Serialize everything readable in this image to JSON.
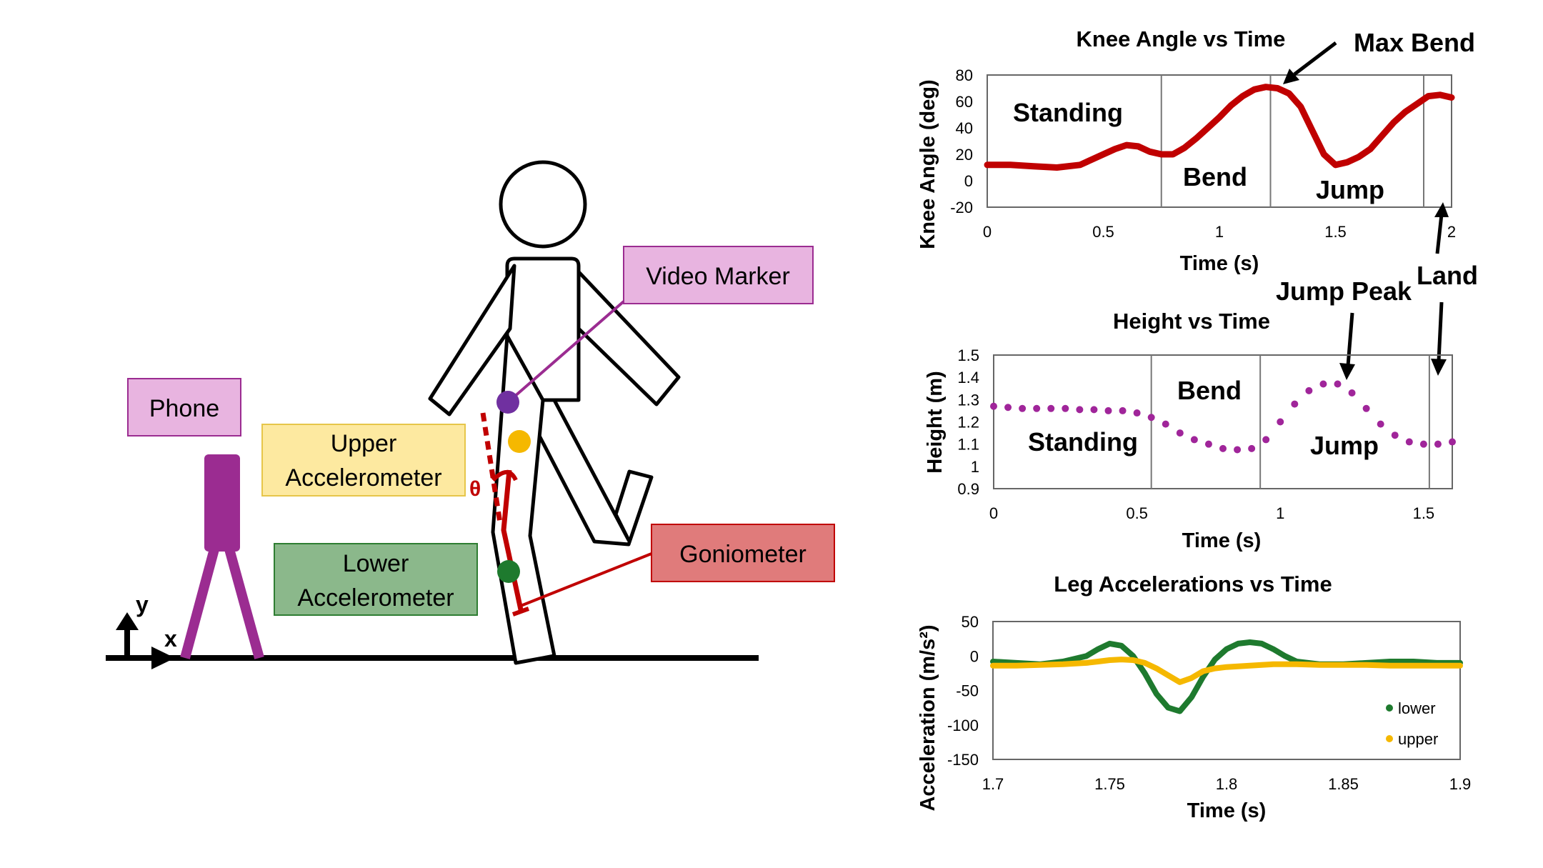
{
  "diagram": {
    "labels": {
      "phone": "Phone",
      "upper_accel_1": "Upper",
      "upper_accel_2": "Accelerometer",
      "lower_accel_1": "Lower",
      "lower_accel_2": "Accelerometer",
      "video_marker": "Video Marker",
      "goniometer": "Goniometer",
      "theta": "θ",
      "axis_x": "x",
      "axis_y": "y"
    },
    "colors": {
      "phone": "#9b2c91",
      "phone_box": "#e8b4e0",
      "video_box": "#e8b4e0",
      "video_line": "#9b2c91",
      "upper_box": "#fde9a0",
      "upper_marker": "#f5b800",
      "lower_box": "#8bb88b",
      "lower_marker": "#1e7a2e",
      "gonio_box": "#e07b7b",
      "gonio": "#c00000",
      "video_marker_dot": "#7030a0"
    }
  },
  "charts": {
    "knee": {
      "title": "Knee Angle vs Time",
      "xlabel": "Time (s)",
      "ylabel": "Knee Angle (deg)",
      "xticks": [
        "0",
        "0.5",
        "1",
        "1.5",
        "2"
      ],
      "yticks": [
        "80",
        "60",
        "40",
        "20",
        "0",
        "-20"
      ],
      "phases": [
        "Standing",
        "Bend",
        "Jump"
      ],
      "annotations": [
        "Max Bend",
        "Land"
      ]
    },
    "height": {
      "title": "Height vs Time",
      "xlabel": "Time (s)",
      "ylabel": "Height (m)",
      "xticks": [
        "0",
        "0.5",
        "1",
        "1.5"
      ],
      "yticks": [
        "1.5",
        "1.4",
        "1.3",
        "1.2",
        "1.1",
        "1",
        "0.9"
      ],
      "phases": [
        "Standing",
        "Bend",
        "Jump"
      ],
      "annotations": [
        "Jump Peak"
      ]
    },
    "accel": {
      "title": "Leg Accelerations vs Time",
      "xlabel": "Time (s)",
      "ylabel": "Acceleration (m/s²)",
      "xticks": [
        "1.7",
        "1.75",
        "1.8",
        "1.85",
        "1.9"
      ],
      "yticks": [
        "50",
        "0",
        "-50",
        "-100",
        "-150"
      ],
      "legend": [
        "lower",
        "upper"
      ]
    }
  },
  "chart_data": [
    {
      "type": "line",
      "title": "Knee Angle vs Time",
      "xlabel": "Time (s)",
      "ylabel": "Knee Angle (deg)",
      "xlim": [
        0,
        2
      ],
      "ylim": [
        -20,
        80
      ],
      "grid": false,
      "color": "#c00000",
      "phase_boundaries": [
        0.75,
        1.22,
        1.88
      ],
      "series": [
        {
          "x": [
            0,
            0.1,
            0.2,
            0.3,
            0.4,
            0.5,
            0.55,
            0.6,
            0.65,
            0.7,
            0.75,
            0.8,
            0.85,
            0.9,
            0.95,
            1.0,
            1.05,
            1.1,
            1.15,
            1.2,
            1.25,
            1.3,
            1.35,
            1.4,
            1.45,
            1.5,
            1.55,
            1.6,
            1.65,
            1.7,
            1.75,
            1.8,
            1.85,
            1.9,
            1.95,
            2.0
          ],
          "y": [
            12,
            12,
            11,
            10,
            12,
            20,
            24,
            27,
            26,
            22,
            20,
            20,
            25,
            32,
            40,
            48,
            57,
            64,
            69,
            71,
            70,
            66,
            56,
            38,
            20,
            12,
            14,
            18,
            24,
            34,
            44,
            52,
            58,
            64,
            65,
            63
          ]
        }
      ]
    },
    {
      "type": "scatter",
      "title": "Height vs Time",
      "xlabel": "Time (s)",
      "ylabel": "Height (m)",
      "xlim": [
        0,
        1.6
      ],
      "ylim": [
        0.9,
        1.5
      ],
      "grid": false,
      "color": "#a0259a",
      "phase_boundaries": [
        0.55,
        0.93,
        1.52
      ],
      "series": [
        {
          "x": [
            0,
            0.05,
            0.1,
            0.15,
            0.2,
            0.25,
            0.3,
            0.35,
            0.4,
            0.45,
            0.5,
            0.55,
            0.6,
            0.65,
            0.7,
            0.75,
            0.8,
            0.85,
            0.9,
            0.95,
            1.0,
            1.05,
            1.1,
            1.15,
            1.2,
            1.25,
            1.3,
            1.35,
            1.4,
            1.45,
            1.5,
            1.55,
            1.6
          ],
          "y": [
            1.27,
            1.265,
            1.26,
            1.26,
            1.26,
            1.26,
            1.255,
            1.255,
            1.25,
            1.25,
            1.24,
            1.22,
            1.19,
            1.15,
            1.12,
            1.1,
            1.08,
            1.075,
            1.08,
            1.12,
            1.2,
            1.28,
            1.34,
            1.37,
            1.37,
            1.33,
            1.26,
            1.19,
            1.14,
            1.11,
            1.1,
            1.1,
            1.11
          ]
        }
      ]
    },
    {
      "type": "line",
      "title": "Leg Accelerations vs Time",
      "xlabel": "Time (s)",
      "ylabel": "Acceleration (m/s²)",
      "xlim": [
        1.7,
        1.9
      ],
      "ylim": [
        -150,
        50
      ],
      "grid": false,
      "legend_position": "bottom-right",
      "series": [
        {
          "name": "lower",
          "color": "#1e7a2e",
          "x": [
            1.7,
            1.71,
            1.72,
            1.73,
            1.74,
            1.745,
            1.75,
            1.755,
            1.76,
            1.765,
            1.77,
            1.775,
            1.78,
            1.785,
            1.79,
            1.795,
            1.8,
            1.805,
            1.81,
            1.815,
            1.82,
            1.825,
            1.83,
            1.84,
            1.85,
            1.86,
            1.87,
            1.88,
            1.89,
            1.9
          ],
          "y": [
            -8,
            -10,
            -12,
            -8,
            0,
            10,
            18,
            15,
            0,
            -25,
            -55,
            -75,
            -80,
            -60,
            -30,
            -5,
            10,
            18,
            20,
            18,
            10,
            0,
            -8,
            -12,
            -12,
            -10,
            -8,
            -8,
            -10,
            -10
          ]
        },
        {
          "name": "upper",
          "color": "#f5b800",
          "x": [
            1.7,
            1.71,
            1.72,
            1.73,
            1.74,
            1.745,
            1.75,
            1.755,
            1.76,
            1.765,
            1.77,
            1.775,
            1.78,
            1.785,
            1.79,
            1.795,
            1.8,
            1.805,
            1.81,
            1.815,
            1.82,
            1.825,
            1.83,
            1.84,
            1.85,
            1.86,
            1.87,
            1.88,
            1.89,
            1.9
          ],
          "y": [
            -14,
            -14,
            -13,
            -12,
            -10,
            -8,
            -6,
            -5,
            -6,
            -10,
            -18,
            -28,
            -38,
            -32,
            -22,
            -18,
            -16,
            -15,
            -14,
            -13,
            -12,
            -12,
            -12,
            -13,
            -13,
            -13,
            -14,
            -14,
            -14,
            -14
          ]
        }
      ]
    }
  ]
}
